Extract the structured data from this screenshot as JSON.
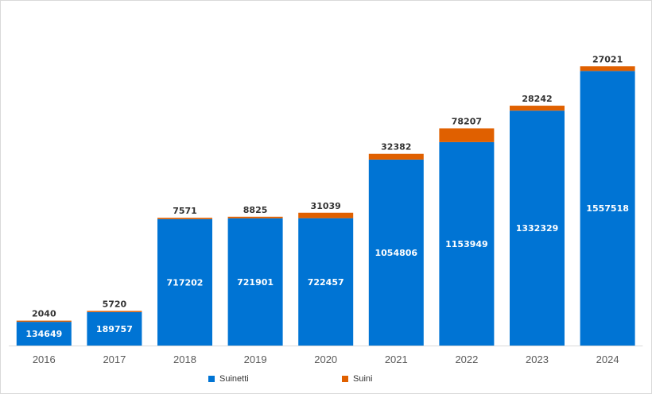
{
  "chart_data": {
    "type": "bar",
    "stacked": true,
    "categories": [
      "2016",
      "2017",
      "2018",
      "2019",
      "2020",
      "2021",
      "2022",
      "2023",
      "2024"
    ],
    "series": [
      {
        "name": "Suinetti",
        "color": "#0074d4",
        "values": [
          134649,
          189757,
          717202,
          721901,
          722457,
          1054806,
          1153949,
          1332329,
          1557518
        ]
      },
      {
        "name": "Suini",
        "color": "#e06000",
        "values": [
          2040,
          5720,
          7571,
          8825,
          31039,
          32382,
          78207,
          28242,
          27021
        ]
      }
    ],
    "ylim": [
      0,
      1960000
    ],
    "grid": false,
    "legend": "bottom",
    "title": "",
    "xlabel": "",
    "ylabel": ""
  }
}
